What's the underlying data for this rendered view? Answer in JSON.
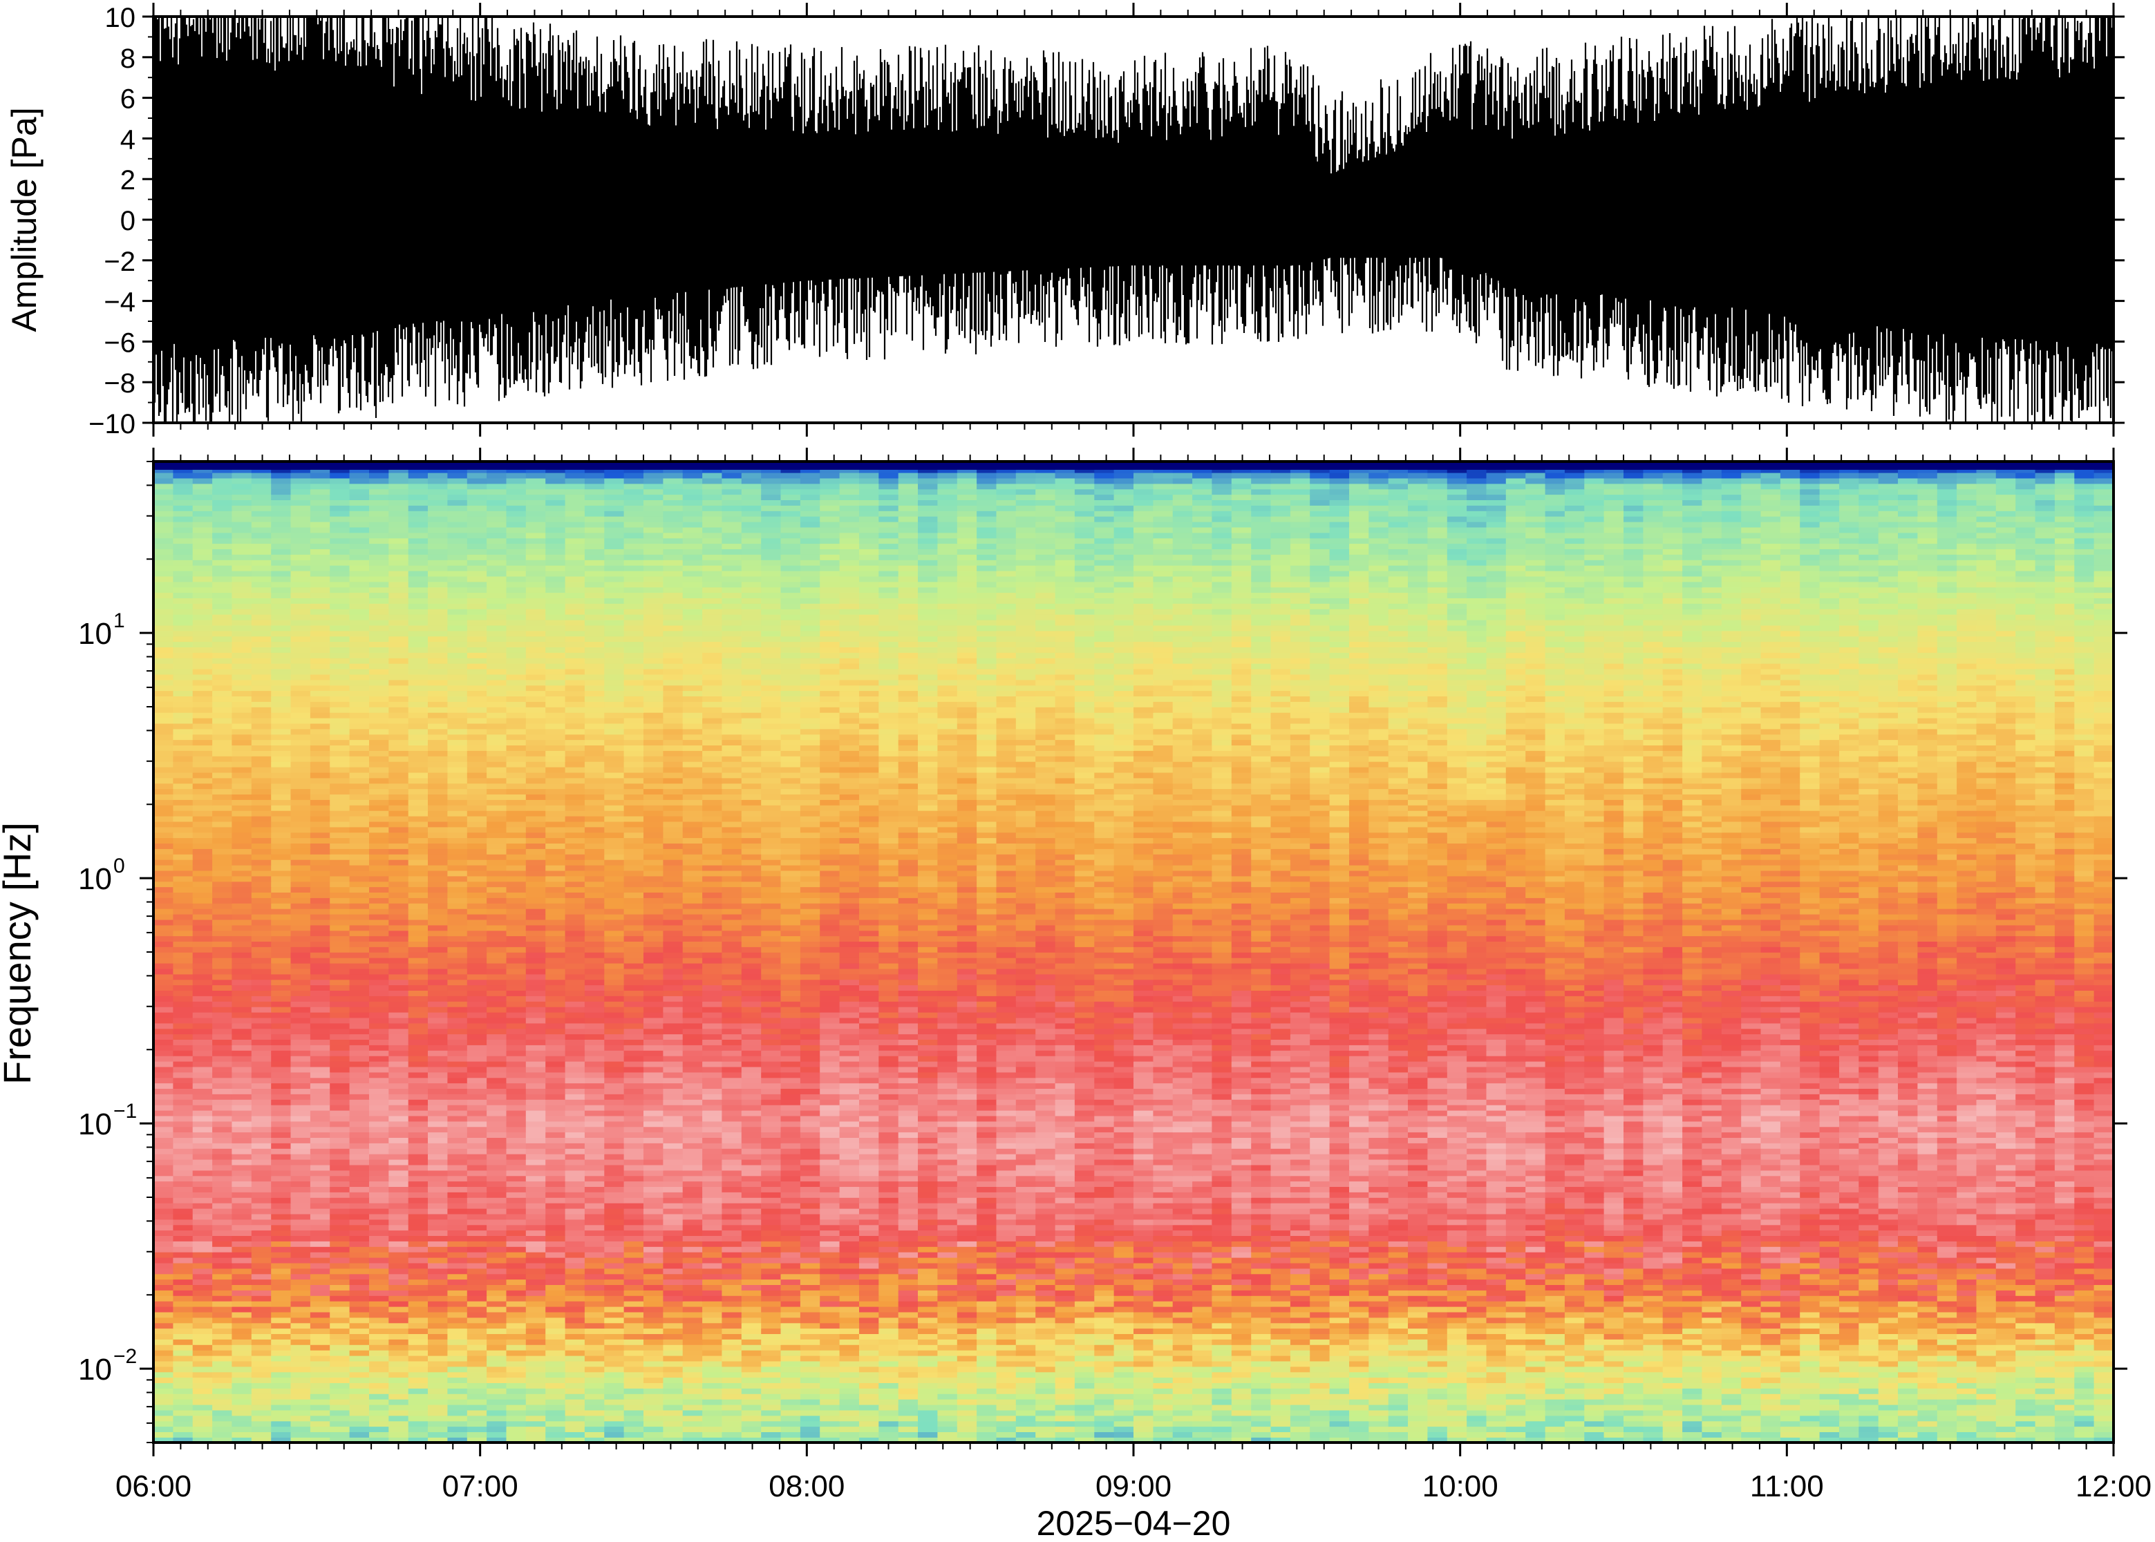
{
  "chart_data": [
    {
      "type": "line",
      "ylabel": "Amplitude [Pa]",
      "ylim": [
        -10,
        10
      ],
      "y_ticks": [
        "10",
        "8",
        "6",
        "4",
        "2",
        "0",
        "−2",
        "−4",
        "−6",
        "−8",
        "−10"
      ],
      "y_tick_values": [
        10,
        8,
        6,
        4,
        2,
        0,
        -2,
        -4,
        -6,
        -8,
        -10
      ],
      "xlim": [
        "06:00",
        "12:00"
      ],
      "envelope": {
        "x_hours": [
          6.0,
          6.5,
          7.0,
          7.5,
          8.0,
          8.5,
          9.0,
          9.5,
          9.6,
          10.0,
          10.15,
          10.5,
          11.0,
          11.5,
          12.0
        ],
        "upper": [
          9.0,
          8.5,
          7.0,
          6.0,
          5.5,
          5.5,
          5.0,
          5.5,
          3.0,
          6.0,
          5.0,
          6.0,
          7.0,
          8.0,
          8.5
        ],
        "lower": [
          -7.5,
          -7.0,
          -6.0,
          -5.0,
          -4.0,
          -3.5,
          -3.0,
          -3.0,
          -2.5,
          -2.5,
          -4.5,
          -5.0,
          -6.0,
          -7.0,
          -7.5
        ]
      },
      "color": "#000000"
    },
    {
      "type": "heatmap",
      "ylabel": "Frequency [Hz]",
      "yscale": "log",
      "ylim": [
        0.005,
        50
      ],
      "y_tick_values": [
        0.01,
        0.1,
        1,
        10
      ],
      "y_ticks": [
        {
          "base": "10",
          "exp": "−2"
        },
        {
          "base": "10",
          "exp": "−1"
        },
        {
          "base": "10",
          "exp": "0"
        },
        {
          "base": "10",
          "exp": "1"
        }
      ],
      "xlim": [
        "06:00",
        "12:00"
      ],
      "x_ticks": [
        "06:00",
        "07:00",
        "08:00",
        "09:00",
        "10:00",
        "11:00",
        "12:00"
      ],
      "x_tick_hours": [
        6,
        7,
        8,
        9,
        10,
        11,
        12
      ],
      "xlabel": "2025−04−20",
      "colormap": [
        "#00007a",
        "#1a5cd8",
        "#7fe0c0",
        "#c8f08c",
        "#f7e070",
        "#f5a040",
        "#f05050",
        "#f6b6b6"
      ],
      "profile_hz": [
        0.005,
        0.008,
        0.012,
        0.02,
        0.04,
        0.1,
        0.3,
        1,
        3,
        10,
        20,
        40,
        50
      ],
      "profile_level": [
        0.35,
        0.45,
        0.6,
        0.78,
        0.9,
        0.95,
        0.85,
        0.72,
        0.63,
        0.5,
        0.38,
        0.3,
        0.05
      ]
    }
  ]
}
